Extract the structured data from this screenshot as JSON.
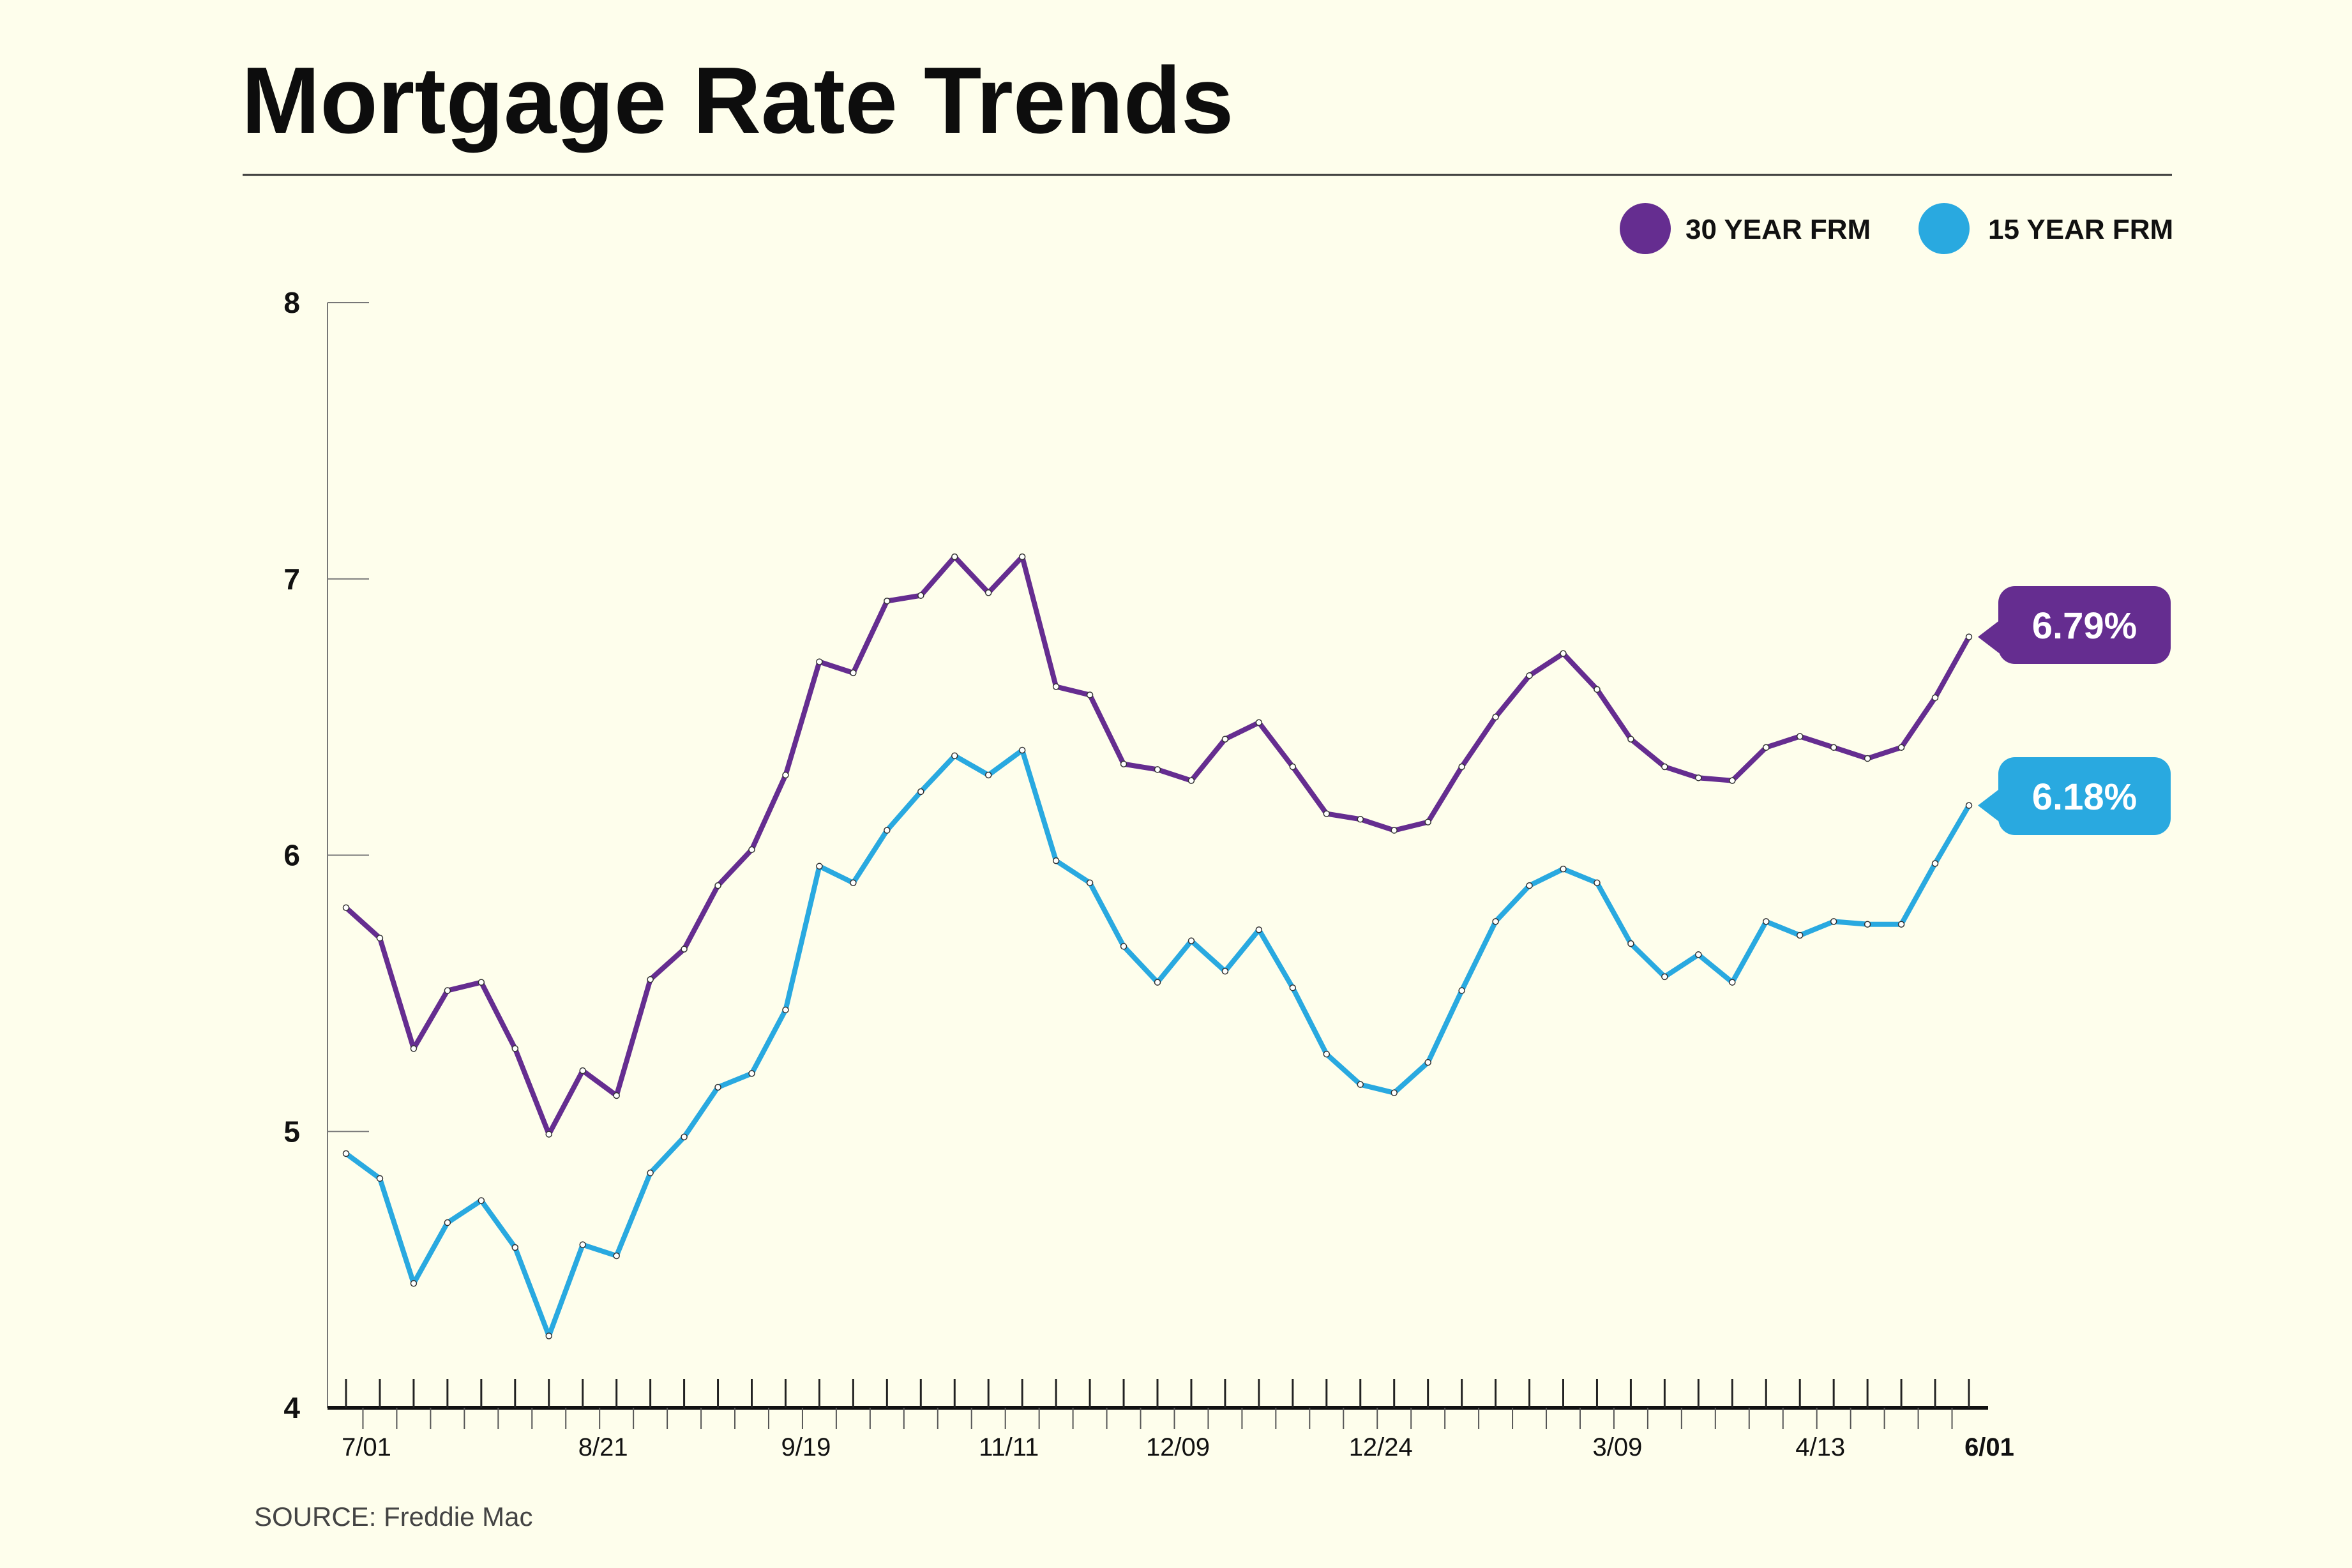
{
  "title": "Mortgage Rate Trends",
  "source": "SOURCE: Freddie Mac",
  "colors": {
    "series_30": "#652d90",
    "series_15": "#29a9e0",
    "background": "#fefeec",
    "text": "#111111"
  },
  "chart_data": {
    "type": "line",
    "title": "Mortgage Rate Trends",
    "xlabel": "",
    "ylabel": "",
    "ylim": [
      4,
      8
    ],
    "yticks": [
      "8",
      "7",
      "6",
      "5",
      "4"
    ],
    "xtick_labels": [
      "7/01",
      "8/21",
      "9/19",
      "11/11",
      "12/09",
      "12/24",
      "3/09",
      "4/13",
      "6/01"
    ],
    "xtick_label_indices": [
      0,
      7,
      13,
      19,
      24,
      30,
      37,
      43,
      48
    ],
    "grid": false,
    "legend_position": "top-right",
    "series": [
      {
        "name": "30 YEAR FRM",
        "color": "#652d90",
        "end_label": "6.79%",
        "values": [
          5.81,
          5.7,
          5.3,
          5.51,
          5.54,
          5.3,
          4.99,
          5.22,
          5.13,
          5.55,
          5.66,
          5.89,
          6.02,
          6.29,
          6.7,
          6.66,
          6.92,
          6.94,
          7.08,
          6.95,
          7.08,
          6.61,
          6.58,
          6.33,
          6.31,
          6.27,
          6.42,
          6.48,
          6.32,
          6.15,
          6.13,
          6.09,
          6.12,
          6.32,
          6.5,
          6.65,
          6.73,
          6.6,
          6.42,
          6.32,
          6.28,
          6.27,
          6.39,
          6.43,
          6.39,
          6.35,
          6.39,
          6.57,
          6.79
        ]
      },
      {
        "name": "15 YEAR FRM",
        "color": "#29a9e0",
        "end_label": "6.18%",
        "values": [
          4.92,
          4.83,
          4.45,
          4.67,
          4.75,
          4.58,
          4.26,
          4.59,
          4.55,
          4.85,
          4.98,
          5.16,
          5.21,
          5.44,
          5.96,
          5.9,
          6.09,
          6.23,
          6.36,
          6.29,
          6.38,
          5.98,
          5.9,
          5.67,
          5.54,
          5.69,
          5.58,
          5.73,
          5.52,
          5.28,
          5.17,
          5.14,
          5.25,
          5.51,
          5.76,
          5.89,
          5.95,
          5.9,
          5.68,
          5.56,
          5.64,
          5.54,
          5.76,
          5.71,
          5.76,
          5.75,
          5.75,
          5.97,
          6.18
        ]
      }
    ]
  }
}
